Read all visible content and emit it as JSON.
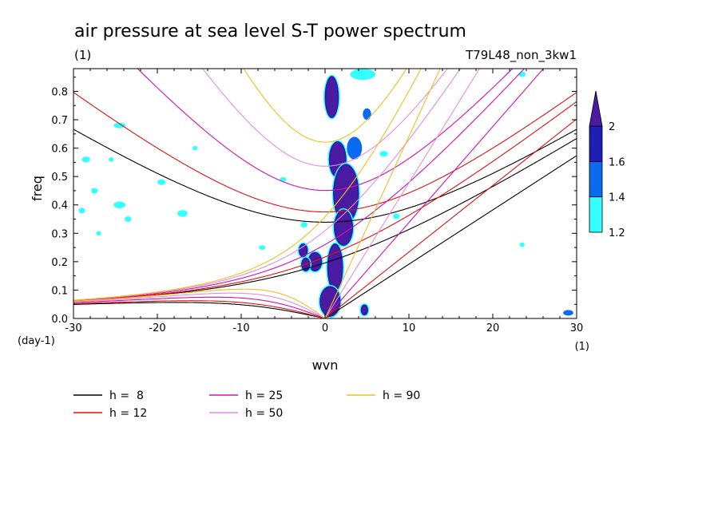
{
  "chart_data": {
    "type": "heatmap",
    "title": "air pressure at sea level S-T power spectrum",
    "title_units": "(1)",
    "run_label": "T79L48_non_3kw1",
    "xlabel": "wvn",
    "ylabel": "freq",
    "x_units": "(1)",
    "y_units": "(day-1)",
    "xlim": [
      -30,
      30
    ],
    "ylim": [
      0,
      0.88
    ],
    "x_ticks": [
      -30,
      -20,
      -10,
      0,
      10,
      20,
      30
    ],
    "y_ticks": [
      0.0,
      0.1,
      0.2,
      0.3,
      0.4,
      0.5,
      0.6,
      0.7,
      0.8
    ],
    "x_tick_labels": [
      "-30",
      "-20",
      "-10",
      "0",
      "10",
      "20",
      "30"
    ],
    "y_tick_labels": [
      "0.0",
      "0.1",
      "0.2",
      "0.3",
      "0.4",
      "0.5",
      "0.6",
      "0.7",
      "0.8"
    ],
    "colorbar": {
      "levels": [
        1.2,
        1.4,
        1.6,
        2
      ],
      "labels": [
        "1.2",
        "1.4",
        "1.6",
        "2"
      ],
      "colors": [
        "#33ffff",
        "#0a6bf0",
        "#1e1eb4",
        "#4a1aa0"
      ]
    },
    "filled_regions": [
      {
        "level": 2,
        "kind": "blob",
        "x": 0.8,
        "y": 0.78,
        "rx": 0.7,
        "ry": 0.07
      },
      {
        "level": 2,
        "kind": "blob",
        "x": 1.5,
        "y": 0.56,
        "rx": 0.9,
        "ry": 0.06
      },
      {
        "level": 2,
        "kind": "blob",
        "x": 2.5,
        "y": 0.44,
        "rx": 1.4,
        "ry": 0.1
      },
      {
        "level": 2,
        "kind": "blob",
        "x": 2.2,
        "y": 0.32,
        "rx": 1.0,
        "ry": 0.06
      },
      {
        "level": 2,
        "kind": "blob",
        "x": 1.2,
        "y": 0.18,
        "rx": 0.8,
        "ry": 0.08
      },
      {
        "level": 2,
        "kind": "blob",
        "x": 0.6,
        "y": 0.06,
        "rx": 1.1,
        "ry": 0.05
      },
      {
        "level": 2,
        "kind": "blob",
        "x": -1.2,
        "y": 0.2,
        "rx": 0.7,
        "ry": 0.03
      },
      {
        "level": 2,
        "kind": "blob",
        "x": -2.6,
        "y": 0.24,
        "rx": 0.4,
        "ry": 0.02
      },
      {
        "level": 2,
        "kind": "blob",
        "x": -2.3,
        "y": 0.19,
        "rx": 0.4,
        "ry": 0.02
      },
      {
        "level": 2,
        "kind": "blob",
        "x": 4.7,
        "y": 0.03,
        "rx": 0.3,
        "ry": 0.015
      },
      {
        "level": 1.4,
        "kind": "blob",
        "x": 3.5,
        "y": 0.6,
        "rx": 0.9,
        "ry": 0.04
      },
      {
        "level": 1.4,
        "kind": "blob",
        "x": 5.0,
        "y": 0.72,
        "rx": 0.5,
        "ry": 0.02
      },
      {
        "level": 1.4,
        "kind": "blob",
        "x": 29.0,
        "y": 0.02,
        "rx": 0.6,
        "ry": 0.01
      },
      {
        "level": 1.2,
        "kind": "blob",
        "x": 4.5,
        "y": 0.86,
        "rx": 1.5,
        "ry": 0.02
      },
      {
        "level": 1.2,
        "kind": "blob",
        "x": -24.5,
        "y": 0.68,
        "rx": 0.7,
        "ry": 0.01
      },
      {
        "level": 1.2,
        "kind": "blob",
        "x": -28.5,
        "y": 0.56,
        "rx": 0.5,
        "ry": 0.01
      },
      {
        "level": 1.2,
        "kind": "blob",
        "x": -27.5,
        "y": 0.45,
        "rx": 0.4,
        "ry": 0.01
      },
      {
        "level": 1.2,
        "kind": "blob",
        "x": -24.5,
        "y": 0.4,
        "rx": 0.7,
        "ry": 0.012
      },
      {
        "level": 1.2,
        "kind": "blob",
        "x": -19.5,
        "y": 0.48,
        "rx": 0.5,
        "ry": 0.01
      },
      {
        "level": 1.2,
        "kind": "blob",
        "x": -17.0,
        "y": 0.37,
        "rx": 0.6,
        "ry": 0.012
      },
      {
        "level": 1.2,
        "kind": "blob",
        "x": -23.5,
        "y": 0.35,
        "rx": 0.4,
        "ry": 0.01
      },
      {
        "level": 1.2,
        "kind": "blob",
        "x": -27.0,
        "y": 0.3,
        "rx": 0.3,
        "ry": 0.008
      },
      {
        "level": 1.2,
        "kind": "blob",
        "x": -29.0,
        "y": 0.38,
        "rx": 0.4,
        "ry": 0.01
      },
      {
        "level": 1.2,
        "kind": "blob",
        "x": -7.5,
        "y": 0.25,
        "rx": 0.4,
        "ry": 0.008
      },
      {
        "level": 1.2,
        "kind": "blob",
        "x": -5.0,
        "y": 0.49,
        "rx": 0.4,
        "ry": 0.008
      },
      {
        "level": 1.2,
        "kind": "blob",
        "x": -15.5,
        "y": 0.6,
        "rx": 0.3,
        "ry": 0.008
      },
      {
        "level": 1.2,
        "kind": "blob",
        "x": -25.5,
        "y": 0.56,
        "rx": 0.3,
        "ry": 0.008
      },
      {
        "level": 1.2,
        "kind": "blob",
        "x": -2.5,
        "y": 0.33,
        "rx": 0.4,
        "ry": 0.01
      },
      {
        "level": 1.2,
        "kind": "blob",
        "x": 7.0,
        "y": 0.58,
        "rx": 0.5,
        "ry": 0.01
      },
      {
        "level": 1.2,
        "kind": "blob",
        "x": 8.5,
        "y": 0.36,
        "rx": 0.4,
        "ry": 0.01
      },
      {
        "level": 1.2,
        "kind": "blob",
        "x": 23.5,
        "y": 0.86,
        "rx": 0.4,
        "ry": 0.01
      },
      {
        "level": 1.2,
        "kind": "blob",
        "x": 23.5,
        "y": 0.26,
        "rx": 0.3,
        "ry": 0.008
      }
    ],
    "dispersion_curves": [
      {
        "name": "h =  8",
        "h": 8,
        "color": "#000000"
      },
      {
        "name": "h = 12",
        "h": 12,
        "color": "#e01010"
      },
      {
        "name": "h = 25",
        "h": 25,
        "color": "#d010b0"
      },
      {
        "name": "h = 50",
        "h": 50,
        "color": "#e090e0"
      },
      {
        "name": "h = 90",
        "h": 90,
        "color": "#f0c020"
      }
    ],
    "legend": {
      "placement": "bottom-left"
    },
    "grid": false
  }
}
